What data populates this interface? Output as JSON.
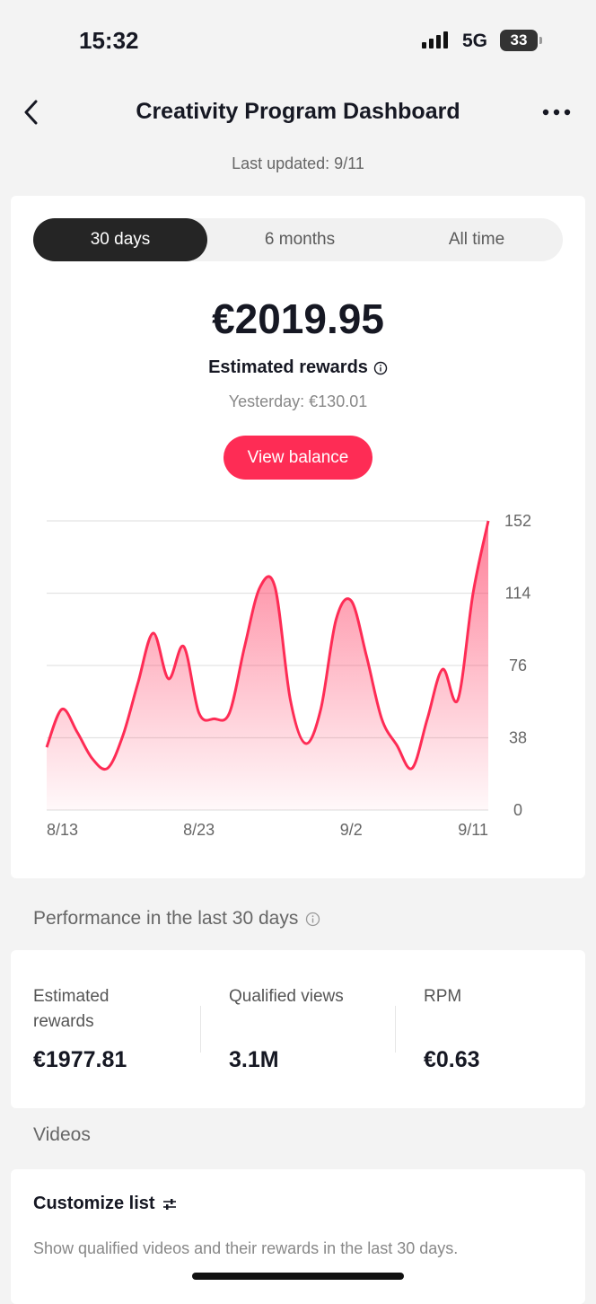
{
  "status_bar": {
    "time": "15:32",
    "network": "5G",
    "battery": "33"
  },
  "header": {
    "title": "Creativity Program Dashboard",
    "last_updated": "Last updated: 9/11"
  },
  "tabs": [
    "30 days",
    "6 months",
    "All time"
  ],
  "active_tab": 0,
  "summary": {
    "amount": "€2019.95",
    "label": "Estimated rewards",
    "yesterday": "Yesterday: €130.01",
    "button": "View balance"
  },
  "chart_data": {
    "type": "area",
    "categories": [
      "8/13",
      null,
      null,
      null,
      null,
      null,
      null,
      null,
      null,
      null,
      "8/23",
      null,
      null,
      null,
      null,
      null,
      null,
      null,
      null,
      null,
      "9/2",
      null,
      null,
      null,
      null,
      null,
      null,
      null,
      null,
      "9/11"
    ],
    "values": [
      33,
      53,
      41,
      27,
      22,
      39,
      67,
      93,
      69,
      86,
      51,
      48,
      51,
      86,
      117,
      117,
      58,
      35,
      53,
      100,
      110,
      81,
      48,
      34,
      22,
      48,
      74,
      58,
      114,
      152
    ],
    "color": "#fe2c55",
    "ylim": [
      0,
      152
    ],
    "yticks": [
      0,
      38,
      76,
      114,
      152
    ],
    "grid": true
  },
  "performance": {
    "title": "Performance in the last 30 days",
    "stats": [
      {
        "label": "Estimated rewards",
        "value": "€1977.81"
      },
      {
        "label": "Qualified views",
        "value": "3.1M"
      },
      {
        "label": "RPM",
        "value": "€0.63"
      }
    ]
  },
  "videos": {
    "title": "Videos",
    "customize": "Customize list",
    "description": "Show qualified videos and their rewards in the last 30 days."
  }
}
